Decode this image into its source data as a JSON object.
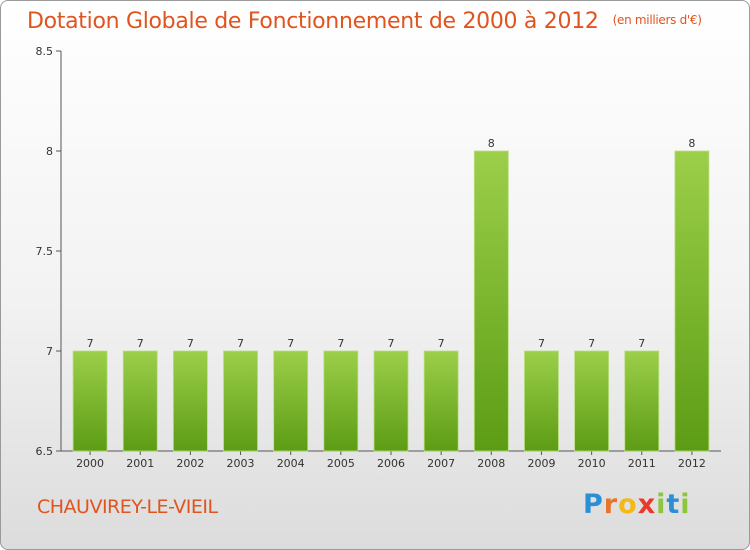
{
  "header": {
    "title": "Dotation Globale de Fonctionnement de 2000 à 2012",
    "unit": "(en milliers d'€)"
  },
  "footer": {
    "commune": "CHAUVIREY-LE-VIEIL",
    "logo_letters": [
      "P",
      "r",
      "o",
      "x",
      "i",
      "t",
      "i"
    ],
    "logo_colors": [
      "#2a8fd4",
      "#e8742a",
      "#f2b81c",
      "#e83a2a",
      "#8cc63f",
      "#2a8fd4",
      "#8cc63f"
    ]
  },
  "colors": {
    "bar_top": "#9ccf4a",
    "bar_bottom": "#5c9c14",
    "axis": "#555555"
  },
  "chart_data": {
    "type": "bar",
    "title": "Dotation Globale de Fonctionnement de 2000 à 2012",
    "subtitle": "(en milliers d'€)",
    "xlabel": "",
    "ylabel": "",
    "categories": [
      "2000",
      "2001",
      "2002",
      "2003",
      "2004",
      "2005",
      "2006",
      "2007",
      "2008",
      "2009",
      "2010",
      "2011",
      "2012"
    ],
    "values": [
      7,
      7,
      7,
      7,
      7,
      7,
      7,
      7,
      8,
      7,
      7,
      7,
      8
    ],
    "data_labels": [
      "7",
      "7",
      "7",
      "7",
      "7",
      "7",
      "7",
      "7",
      "8",
      "7",
      "7",
      "7",
      "8"
    ],
    "ylim": [
      6.5,
      8.5
    ],
    "yticks": [
      6.5,
      7,
      7.5,
      8,
      8.5
    ],
    "ytick_labels": [
      "6.5",
      "7",
      "7.5",
      "8",
      "8.5"
    ],
    "grid": false,
    "legend": "none"
  }
}
